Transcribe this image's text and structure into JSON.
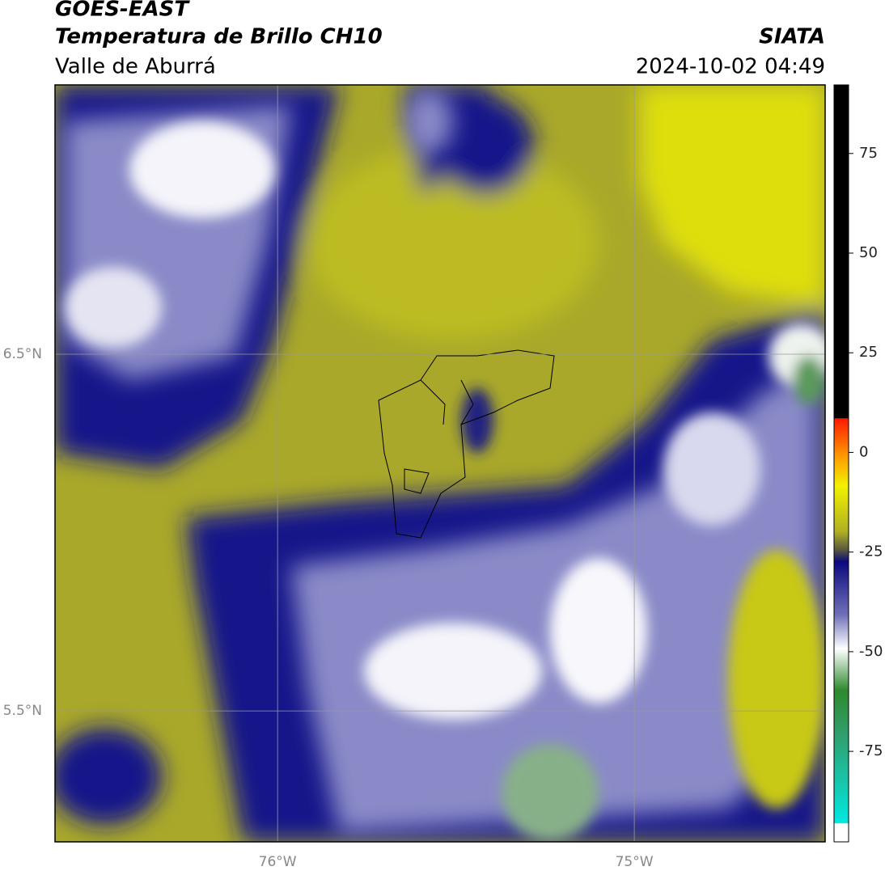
{
  "header": {
    "satellite": "GOES-EAST",
    "title": "Temperatura de Brillo CH10",
    "region": "Valle de Aburrá",
    "agency": "SIATA",
    "datetime": "2024-10-02 04:49"
  },
  "map": {
    "lon_lim": [
      -76.624,
      -74.465
    ],
    "lat_lim": [
      5.133,
      7.255
    ],
    "lon_ticks": [
      {
        "value": -76,
        "label": "76°W"
      },
      {
        "value": -75,
        "label": "75°W"
      }
    ],
    "lat_ticks": [
      {
        "value": 6.5,
        "label": "6.5°N"
      },
      {
        "value": 5.5,
        "label": "5.5°N"
      }
    ]
  },
  "colorbar": {
    "lim": [
      -97.7,
      92.2
    ],
    "ticks": [
      75,
      50,
      25,
      0,
      -25,
      -50,
      -75
    ]
  }
}
